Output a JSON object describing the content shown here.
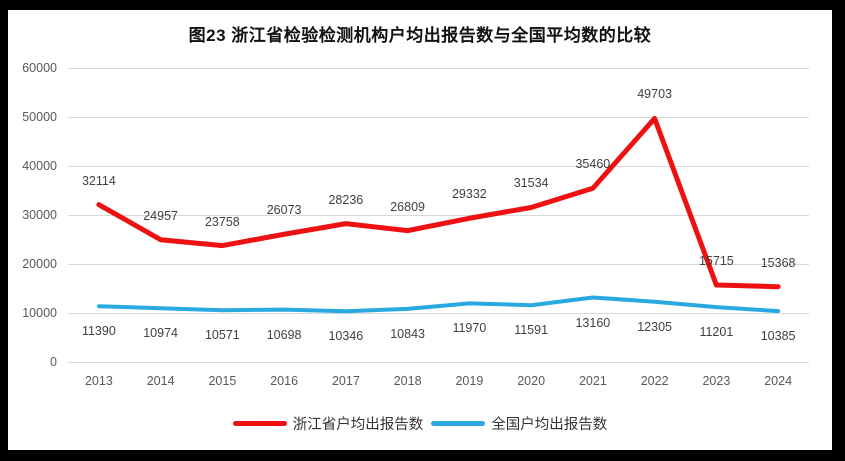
{
  "frame": {
    "page_background": "#000000",
    "chart_background": "#ffffff",
    "gridline_color": "#d9d9d9",
    "tick_text_color": "#595959",
    "data_label_color": "#404040"
  },
  "chart_data": {
    "type": "line",
    "title": "图23  浙江省检验检测机构户均出报告数与全国平均数的比较",
    "categories": [
      "2013",
      "2014",
      "2015",
      "2016",
      "2017",
      "2018",
      "2019",
      "2020",
      "2021",
      "2022",
      "2023",
      "2024"
    ],
    "series": [
      {
        "name": "浙江省户均出报告数",
        "key": "zhejiang",
        "color": "#ed1111",
        "stroke_width": 5,
        "label_position": "above",
        "values": [
          32114,
          24957,
          23758,
          26073,
          28236,
          26809,
          29332,
          31534,
          35460,
          49703,
          15715,
          15368
        ]
      },
      {
        "name": "全国户均出报告数",
        "key": "national",
        "color": "#29a9e0",
        "stroke_width": 4,
        "label_position": "below",
        "values": [
          11390,
          10974,
          10571,
          10698,
          10346,
          10843,
          11970,
          11591,
          13160,
          12305,
          11201,
          10385
        ]
      }
    ],
    "ylim": [
      0,
      60000
    ],
    "y_ticks": [
      0,
      10000,
      20000,
      30000,
      40000,
      50000,
      60000
    ],
    "grid": "horizontal",
    "legend_position": "bottom"
  }
}
